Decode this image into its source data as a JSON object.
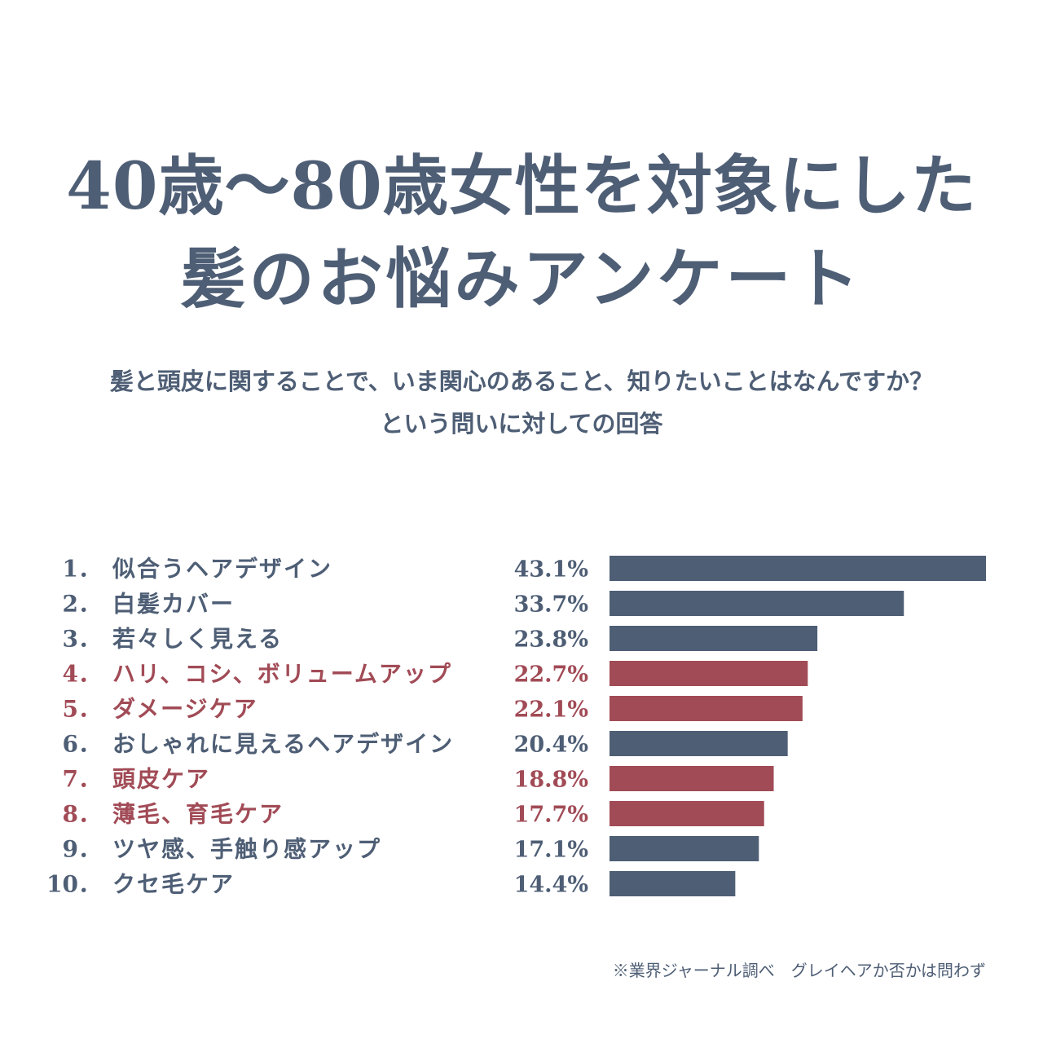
{
  "header": {
    "title_line1": "40歳〜80歳女性を対象にした",
    "title_line2": "髪のお悩みアンケート",
    "subtitle_line1": "髪と頭皮に関することで、いま関心のあること、知りたいことはなんですか？",
    "subtitle_line2": "という問いに対しての回答"
  },
  "footnote": "※業界ジャーナル調べ　グレイヘアか否かは問わず",
  "colors": {
    "default": "#4e5e75",
    "highlight": "#a14b56"
  },
  "chart_data": {
    "type": "bar",
    "orientation": "horizontal",
    "unit": "%",
    "xlim": [
      0,
      43.1
    ],
    "grid": false,
    "categories": [
      "似合うヘアデザイン",
      "白髪カバー",
      "若々しく見える",
      "ハリ、コシ、ボリュームアップ",
      "ダメージケア",
      "おしゃれに見えるヘアデザイン",
      "頭皮ケア",
      "薄毛、育毛ケア",
      "ツヤ感、手触り感アップ",
      "クセ毛ケア"
    ],
    "ranks": [
      "1．",
      "2．",
      "3．",
      "4．",
      "5．",
      "6．",
      "7．",
      "8．",
      "9．",
      "10．"
    ],
    "values": [
      43.1,
      33.7,
      23.8,
      22.7,
      22.1,
      20.4,
      18.8,
      17.7,
      17.1,
      14.4
    ],
    "value_labels": [
      "43.1%",
      "33.7%",
      "23.8%",
      "22.7%",
      "22.1%",
      "20.4%",
      "18.8%",
      "17.7%",
      "17.1%",
      "14.4%"
    ],
    "highlighted": [
      false,
      false,
      false,
      true,
      true,
      false,
      true,
      true,
      false,
      false
    ]
  }
}
